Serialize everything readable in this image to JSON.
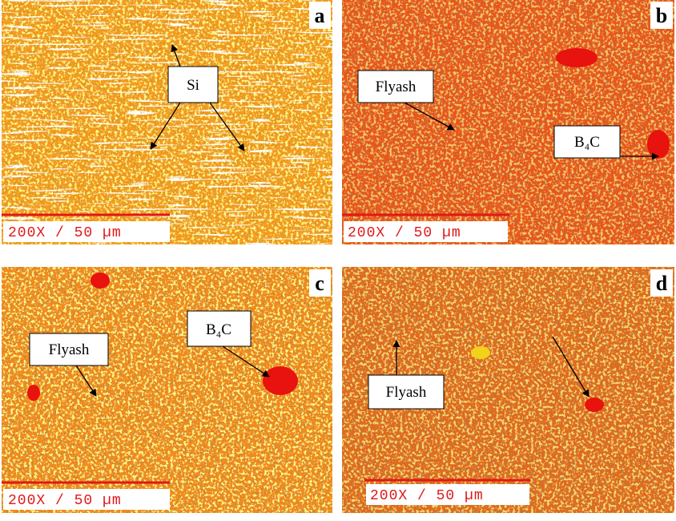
{
  "panels": [
    {
      "letter": "a",
      "scale": "200X / 50 µm",
      "labels": [
        "Si"
      ]
    },
    {
      "letter": "b",
      "scale": "200X / 50 µm",
      "labels": [
        "Flyash",
        "B₄C"
      ]
    },
    {
      "letter": "c",
      "scale": "200X / 50 µm",
      "labels": [
        "Flyash",
        "B₄C"
      ]
    },
    {
      "letter": "d",
      "scale": "200X / 50 µm",
      "labels": [
        "Flyash"
      ]
    }
  ]
}
